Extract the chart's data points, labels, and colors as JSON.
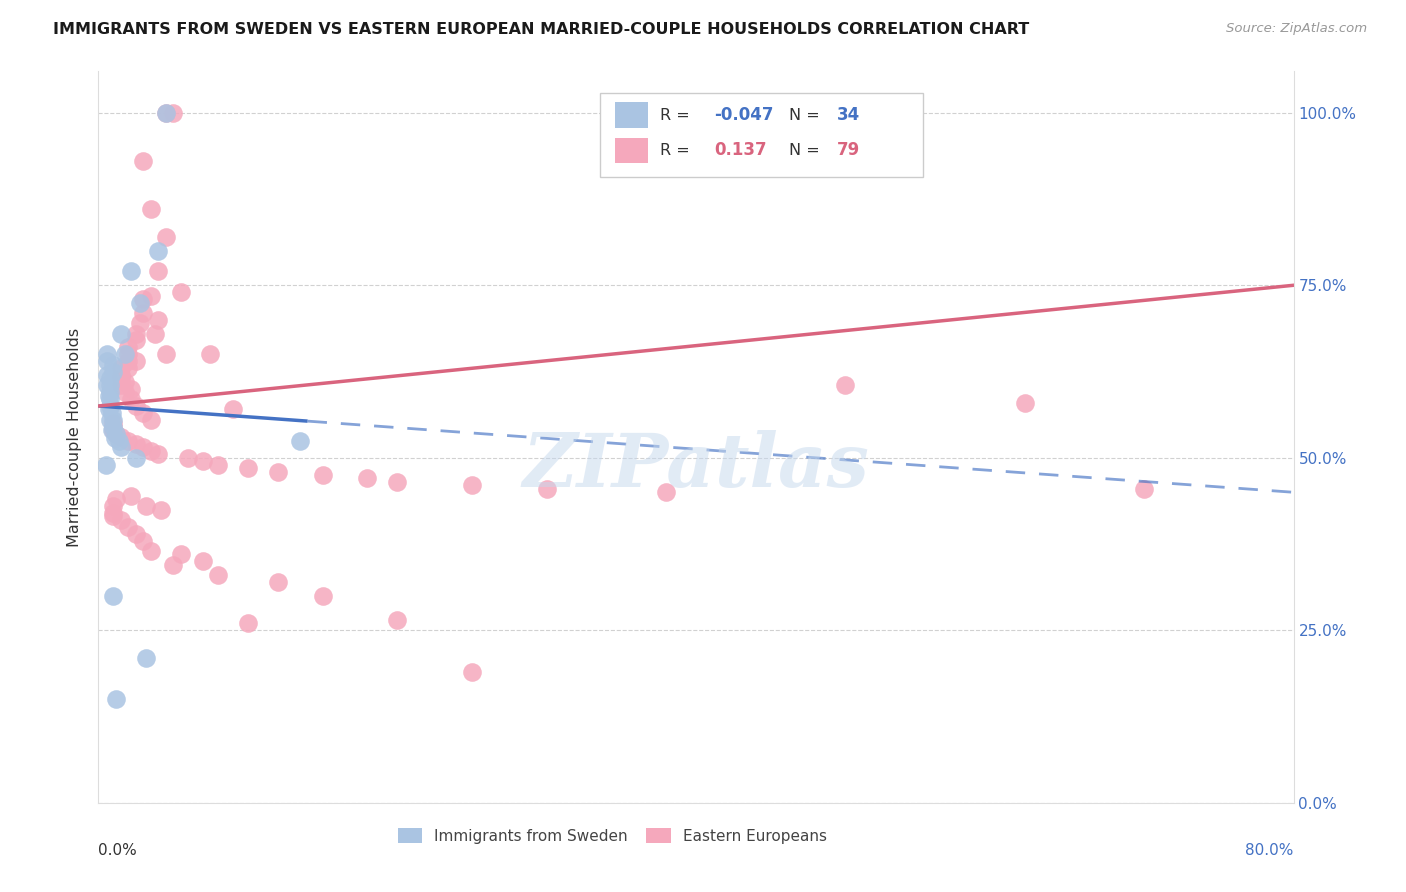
{
  "title": "IMMIGRANTS FROM SWEDEN VS EASTERN EUROPEAN MARRIED-COUPLE HOUSEHOLDS CORRELATION CHART",
  "source": "Source: ZipAtlas.com",
  "ylabel": "Married-couple Households",
  "xlim": [
    0.0,
    80.0
  ],
  "ylim": [
    0.0,
    106.0
  ],
  "legend_r_blue": "-0.047",
  "legend_n_blue": "34",
  "legend_r_pink": "0.137",
  "legend_n_pink": "79",
  "blue_color": "#aac4e2",
  "pink_color": "#f5a8bc",
  "blue_line_color": "#4472c4",
  "pink_line_color": "#d9647e",
  "watermark": "ZIPatlas",
  "blue_line_x0": 0.0,
  "blue_line_y0": 57.5,
  "blue_line_x1": 80.0,
  "blue_line_y1": 45.0,
  "blue_solid_x_end": 14.0,
  "pink_line_x0": 0.0,
  "pink_line_y0": 57.5,
  "pink_line_x1": 80.0,
  "pink_line_y1": 75.0,
  "blue_x": [
    4.5,
    4.0,
    2.2,
    2.8,
    1.5,
    1.8,
    1.0,
    1.0,
    0.8,
    0.8,
    0.8,
    0.8,
    0.8,
    0.9,
    1.0,
    1.0,
    1.2,
    1.4,
    1.5,
    0.6,
    0.6,
    0.6,
    0.6,
    0.7,
    0.7,
    0.8,
    0.9,
    1.1,
    13.5,
    1.0,
    3.2,
    1.2,
    2.5,
    0.5
  ],
  "blue_y": [
    100.0,
    80.0,
    77.0,
    72.5,
    68.0,
    65.0,
    63.5,
    62.5,
    61.5,
    60.5,
    59.5,
    58.5,
    57.5,
    56.5,
    55.5,
    54.5,
    53.5,
    52.5,
    51.5,
    65.0,
    64.0,
    62.0,
    60.5,
    59.0,
    57.0,
    55.5,
    54.0,
    52.8,
    52.5,
    30.0,
    21.0,
    15.0,
    50.0,
    49.0
  ],
  "pink_x": [
    4.5,
    5.0,
    3.0,
    3.5,
    4.5,
    4.0,
    3.5,
    3.0,
    2.8,
    2.5,
    2.5,
    2.0,
    2.0,
    2.0,
    1.5,
    1.5,
    1.8,
    2.2,
    3.0,
    4.0,
    3.8,
    4.5,
    2.5,
    2.0,
    1.5,
    1.5,
    1.8,
    2.2,
    2.5,
    3.0,
    3.5,
    1.0,
    1.0,
    1.0,
    1.2,
    1.5,
    2.0,
    2.5,
    3.0,
    3.5,
    4.0,
    6.0,
    7.0,
    8.0,
    10.0,
    12.0,
    15.0,
    18.0,
    20.0,
    25.0,
    30.0,
    38.0,
    50.0,
    62.0,
    70.0,
    5.5,
    7.5,
    9.0,
    1.0,
    1.0,
    1.0,
    1.5,
    2.0,
    2.5,
    3.0,
    3.5,
    5.0,
    8.0,
    12.0,
    15.0,
    20.0,
    1.2,
    2.2,
    3.2,
    4.2,
    5.5,
    7.0,
    10.0,
    25.0
  ],
  "pink_y": [
    100.0,
    100.0,
    93.0,
    86.0,
    82.0,
    77.0,
    73.5,
    71.0,
    69.5,
    68.0,
    67.0,
    66.0,
    65.0,
    64.0,
    63.0,
    62.0,
    61.0,
    60.0,
    73.0,
    70.0,
    68.0,
    65.0,
    64.0,
    63.0,
    61.5,
    60.5,
    59.5,
    58.5,
    57.5,
    56.5,
    55.5,
    55.0,
    54.5,
    54.0,
    53.5,
    53.0,
    52.5,
    52.0,
    51.5,
    51.0,
    50.5,
    50.0,
    49.5,
    49.0,
    48.5,
    48.0,
    47.5,
    47.0,
    46.5,
    46.0,
    45.5,
    45.0,
    60.5,
    58.0,
    45.5,
    74.0,
    65.0,
    57.0,
    43.0,
    42.0,
    41.5,
    41.0,
    40.0,
    39.0,
    38.0,
    36.5,
    34.5,
    33.0,
    32.0,
    30.0,
    26.5,
    44.0,
    44.5,
    43.0,
    42.5,
    36.0,
    35.0,
    26.0,
    19.0
  ]
}
